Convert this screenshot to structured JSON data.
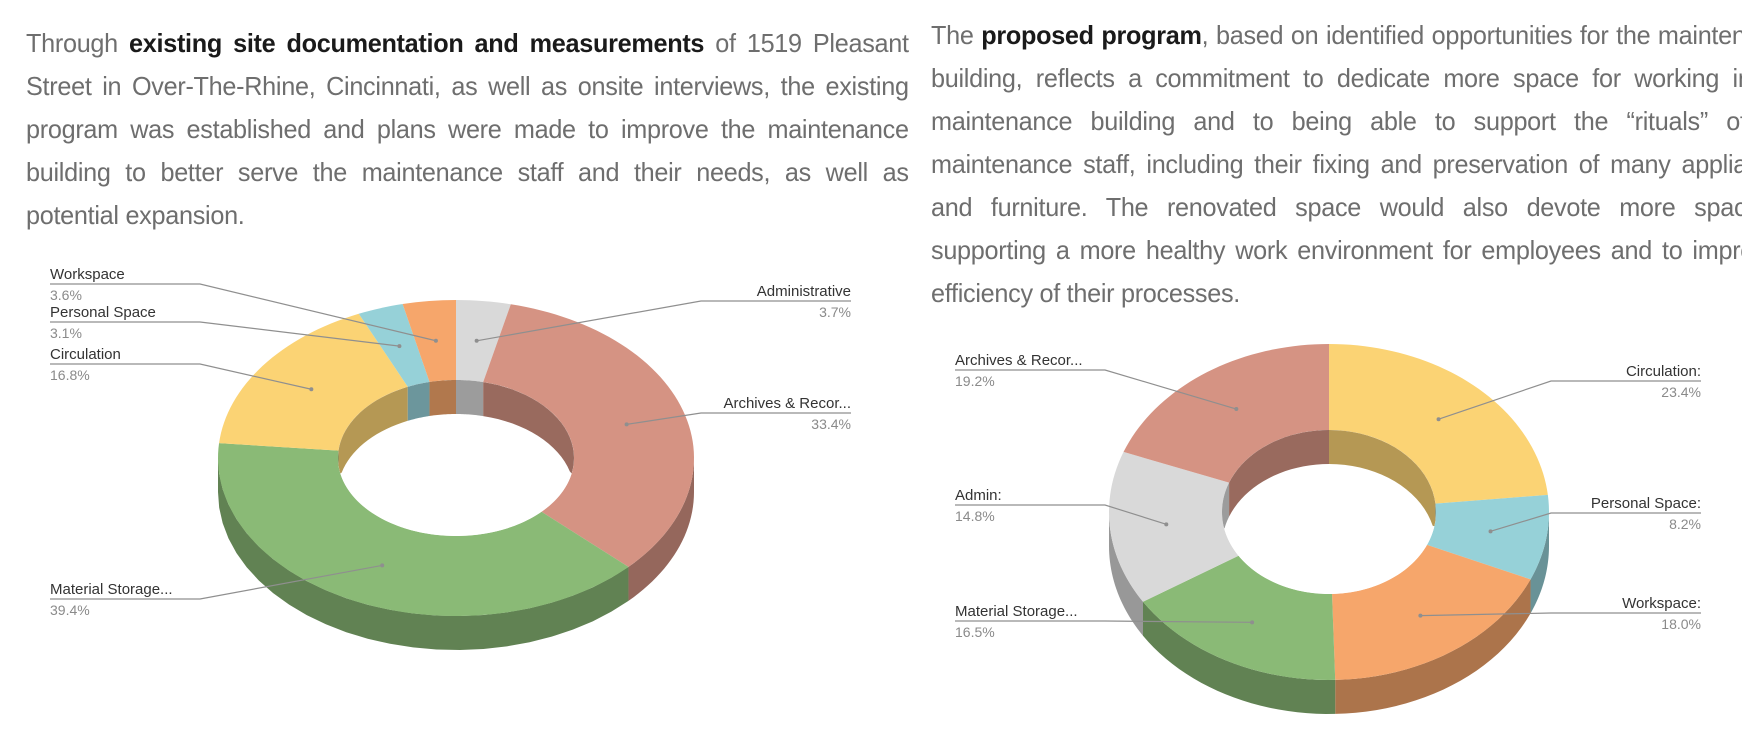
{
  "intro_left": {
    "before": "Through ",
    "bold": "existing site documentation and measurements",
    "after": " of 1519 Pleasant Street in Over-The-Rhine, Cincinnati, as well as onsite interviews, the existing program was established and plans were made to improve the maintenance building to better serve the maintenance staff and their needs, as well as potential expansion."
  },
  "intro_right": {
    "before": "The ",
    "bold": "proposed program",
    "after": ", based on identified opportunities for the maintenance building, reflects a commitment to dedicate more space for working in the maintenance building and to being able to support the “rituals” of the maintenance staff, including their fixing and preservation of many appliances and furniture.  The renovated space would also devote more space to supporting a more healthy work environment for employees and to improving efficiency of their processes."
  },
  "chart_data": [
    {
      "type": "pie",
      "style": "3d-donut",
      "slices": [
        {
          "label": "Administrative",
          "value_label": "3.7%",
          "value": 3.7,
          "color": "#d9d9d9"
        },
        {
          "label": "Archives & Recor...",
          "value_label": "33.4%",
          "value": 33.4,
          "color": "#d59383"
        },
        {
          "label": "Material Storage...",
          "value_label": "39.4%",
          "value": 39.4,
          "color": "#8aba76"
        },
        {
          "label": "Circulation",
          "value_label": "16.8%",
          "value": 16.8,
          "color": "#fbd374"
        },
        {
          "label": "Personal Space",
          "value_label": "3.1%",
          "value": 3.1,
          "color": "#96d1d8"
        },
        {
          "label": "Workspace",
          "value_label": "3.6%",
          "value": 3.6,
          "color": "#f6a66b"
        }
      ]
    },
    {
      "type": "pie",
      "style": "3d-donut",
      "slices": [
        {
          "label": "Circulation:",
          "value_label": "23.4%",
          "value": 23.4,
          "color": "#fbd374"
        },
        {
          "label": "Personal Space:",
          "value_label": "8.2%",
          "value": 8.2,
          "color": "#96d1d8"
        },
        {
          "label": "Workspace:",
          "value_label": "18.0%",
          "value": 18.0,
          "color": "#f6a66b"
        },
        {
          "label": "Material Storage...",
          "value_label": "16.5%",
          "value": 16.5,
          "color": "#8aba76"
        },
        {
          "label": "Admin:",
          "value_label": "14.8%",
          "value": 14.8,
          "color": "#d9d9d9"
        },
        {
          "label": "Archives & Recor...",
          "value_label": "19.2%",
          "value": 19.2,
          "color": "#d59383"
        }
      ]
    }
  ]
}
